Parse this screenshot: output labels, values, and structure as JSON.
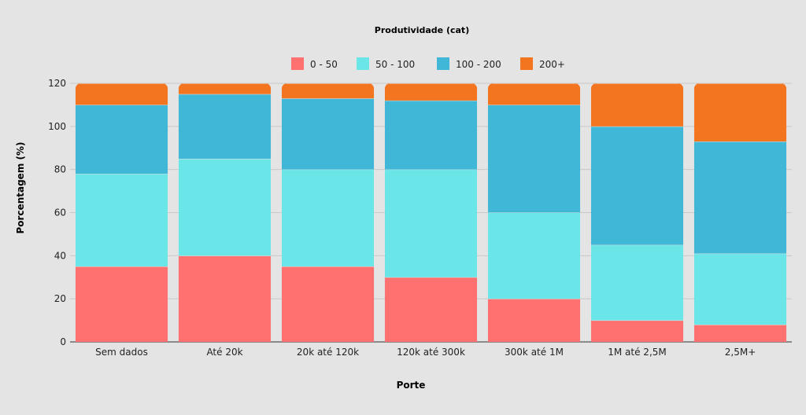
{
  "chart_data": {
    "type": "bar",
    "stacked": true,
    "title": "Produtividade (cat)",
    "xlabel": "Porte",
    "ylabel": "Porcentagem (%)",
    "ylim": [
      0,
      120
    ],
    "yticks": [
      0,
      20,
      40,
      60,
      80,
      100,
      120
    ],
    "grid": true,
    "legend_position": "top-center",
    "categories": [
      "Sem dados",
      "Até 20k",
      "20k até 120k",
      "120k até 300k",
      "300k até 1M",
      "1M até 2,5M",
      "2,5M+"
    ],
    "series": [
      {
        "name": "0 - 50",
        "color": "#ff7070",
        "values": [
          35,
          40,
          35,
          30,
          20,
          10,
          8
        ]
      },
      {
        "name": "50 - 100",
        "color": "#6ae5e8",
        "values": [
          43,
          45,
          45,
          50,
          40,
          35,
          33
        ]
      },
      {
        "name": "100 - 200",
        "color": "#40b7d6",
        "values": [
          32,
          30,
          33,
          32,
          50,
          55,
          52
        ]
      },
      {
        "name": "200+",
        "color": "#f37520",
        "values": [
          10,
          5,
          7,
          8,
          10,
          20,
          27
        ]
      }
    ]
  }
}
